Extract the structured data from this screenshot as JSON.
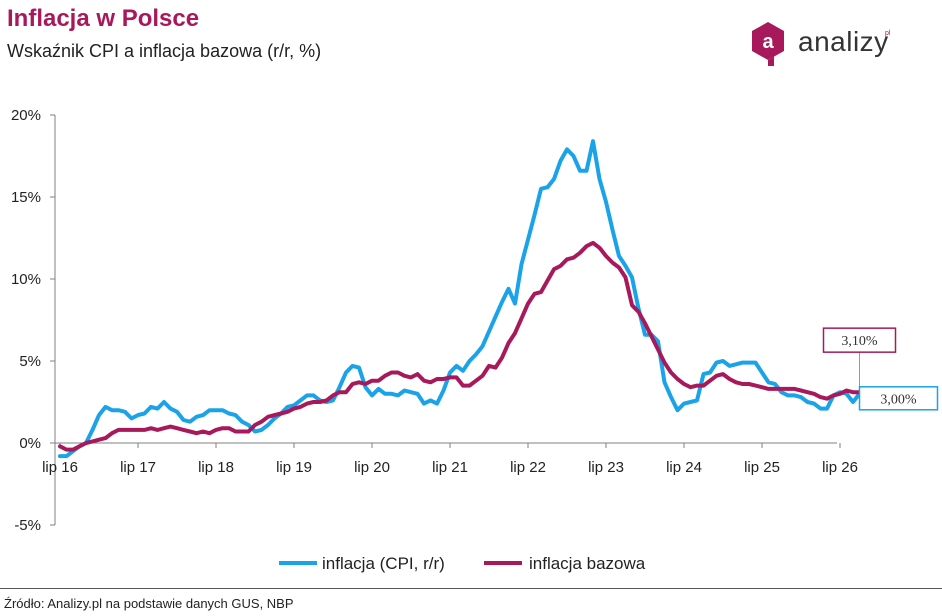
{
  "header": {
    "title": "Inflacja w Polsce",
    "subtitle": "Wskaźnik CPI a inflacja bazowa (r/r, %)"
  },
  "logo": {
    "text": "analizy",
    "superscript": "pl",
    "icon_letter": "a"
  },
  "footer": {
    "source": "Źródło: Analizy.pl na podstawie danych GUS, NBP"
  },
  "colors": {
    "title": "#a8195c",
    "cpi": "#1aa3e8",
    "core": "#a8195c",
    "axis": "#808080"
  },
  "chart_data": {
    "type": "line",
    "x_start": "2016-07",
    "x_frequency": "monthly",
    "xticks": [
      "lip 16",
      "lip 17",
      "lip 18",
      "lip 19",
      "lip 20",
      "lip 21",
      "lip 22",
      "lip 23",
      "lip 24",
      "lip 25",
      "lip 26"
    ],
    "yticks": [
      "20%",
      "15%",
      "10%",
      "5%",
      "0%",
      "-5%"
    ],
    "ytick_values": [
      20,
      15,
      10,
      5,
      0,
      -5
    ],
    "ylim": [
      -5,
      20
    ],
    "grid": false,
    "legend_position": "bottom",
    "series": [
      {
        "name": "inflacja (CPI, r/r)",
        "color": "#1aa3e8",
        "values": [
          -0.8,
          -0.8,
          -0.5,
          -0.2,
          0.0,
          0.8,
          1.7,
          2.2,
          2.0,
          2.0,
          1.9,
          1.5,
          1.7,
          1.8,
          2.2,
          2.1,
          2.5,
          2.1,
          1.9,
          1.4,
          1.3,
          1.6,
          1.7,
          2.0,
          2.0,
          2.0,
          1.8,
          1.7,
          1.3,
          1.1,
          0.7,
          0.8,
          1.1,
          1.5,
          1.8,
          2.2,
          2.3,
          2.6,
          2.9,
          2.9,
          2.6,
          2.5,
          2.6,
          3.4,
          4.3,
          4.7,
          4.6,
          3.4,
          2.9,
          3.3,
          3.0,
          3.0,
          2.9,
          3.2,
          3.1,
          3.0,
          2.4,
          2.6,
          2.4,
          3.2,
          4.3,
          4.7,
          4.4,
          5.0,
          5.4,
          5.9,
          6.8,
          7.7,
          8.6,
          9.4,
          8.5,
          10.9,
          12.4,
          13.9,
          15.5,
          15.6,
          16.1,
          17.2,
          17.9,
          17.5,
          16.6,
          16.6,
          18.4,
          16.1,
          14.7,
          13.0,
          11.4,
          10.8,
          10.1,
          8.2,
          6.6,
          6.6,
          6.2,
          3.7,
          2.8,
          2.0,
          2.4,
          2.5,
          2.6,
          4.2,
          4.3,
          4.9,
          5.0,
          4.7,
          4.8,
          4.9,
          4.9,
          4.9,
          4.3,
          3.7,
          3.6,
          3.1,
          2.9,
          2.9,
          2.8,
          2.5,
          2.4,
          2.1,
          2.1,
          2.9,
          3.1,
          3.0,
          2.5,
          3.0
        ]
      },
      {
        "name": "inflacja bazowa",
        "color": "#a8195c",
        "values": [
          -0.2,
          -0.4,
          -0.4,
          -0.2,
          0.0,
          0.1,
          0.2,
          0.3,
          0.6,
          0.8,
          0.8,
          0.8,
          0.8,
          0.8,
          0.9,
          0.8,
          0.9,
          1.0,
          0.9,
          0.8,
          0.7,
          0.6,
          0.7,
          0.6,
          0.8,
          0.9,
          0.9,
          0.7,
          0.7,
          0.7,
          1.1,
          1.3,
          1.6,
          1.7,
          1.8,
          1.9,
          2.1,
          2.2,
          2.4,
          2.5,
          2.5,
          2.6,
          2.9,
          3.1,
          3.1,
          3.6,
          3.7,
          3.6,
          3.8,
          3.8,
          4.1,
          4.3,
          4.3,
          4.1,
          4.0,
          4.2,
          3.8,
          3.7,
          3.9,
          3.9,
          4.0,
          4.0,
          3.5,
          3.5,
          3.8,
          4.1,
          4.7,
          4.6,
          5.2,
          6.1,
          6.7,
          7.6,
          8.5,
          9.1,
          9.2,
          9.9,
          10.6,
          10.8,
          11.2,
          11.3,
          11.6,
          12.0,
          12.2,
          11.9,
          11.4,
          11.0,
          10.7,
          10.1,
          8.4,
          8.0,
          7.3,
          6.5,
          5.7,
          4.9,
          4.3,
          3.9,
          3.6,
          3.4,
          3.5,
          3.5,
          3.8,
          4.1,
          4.2,
          3.9,
          3.7,
          3.6,
          3.6,
          3.5,
          3.4,
          3.3,
          3.3,
          3.3,
          3.3,
          3.3,
          3.2,
          3.1,
          3.0,
          2.8,
          2.7,
          2.9,
          3.0,
          3.2,
          3.1,
          3.1
        ]
      }
    ],
    "annotations": [
      {
        "text": "3,10%",
        "series": "inflacja bazowa",
        "color": "#a8195c"
      },
      {
        "text": "3,00%",
        "series": "inflacja (CPI, r/r)",
        "color": "#1aa3e8"
      }
    ]
  }
}
